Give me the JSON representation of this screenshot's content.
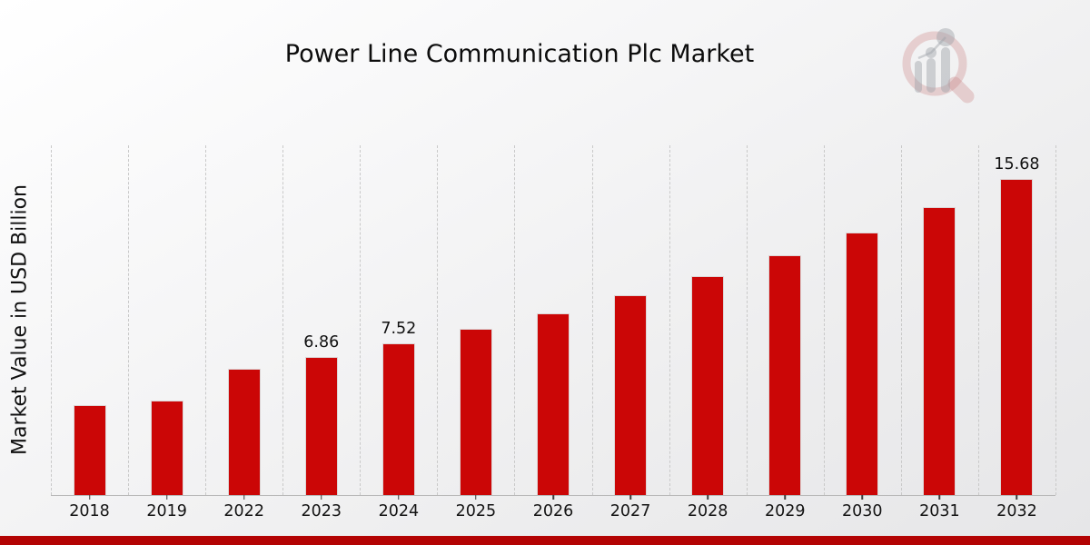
{
  "page": {
    "footer_color": "#b30303"
  },
  "chart_data": {
    "type": "bar",
    "title": "Power Line Communication Plc Market",
    "ylabel": "Market Value in USD Billion",
    "xlabel": "",
    "categories": [
      "2018",
      "2019",
      "2022",
      "2023",
      "2024",
      "2025",
      "2026",
      "2027",
      "2028",
      "2029",
      "2030",
      "2031",
      "2032"
    ],
    "values": [
      4.45,
      4.68,
      6.26,
      6.86,
      7.52,
      8.24,
      9.03,
      9.9,
      10.85,
      11.9,
      13.04,
      14.3,
      15.68
    ],
    "data_labels": [
      null,
      null,
      null,
      "6.86",
      "7.52",
      null,
      null,
      null,
      null,
      null,
      null,
      null,
      "15.68"
    ],
    "ylim": [
      0,
      17.35
    ],
    "bar_color": "#cb0606",
    "grid": "vertical-dashed",
    "legend": "none"
  },
  "logo": {
    "name": "magnifier-bar-chart-logo",
    "ring_color": "rgba(201,130,130,0.32)",
    "bars_color": "rgba(158,162,168,0.45)"
  }
}
